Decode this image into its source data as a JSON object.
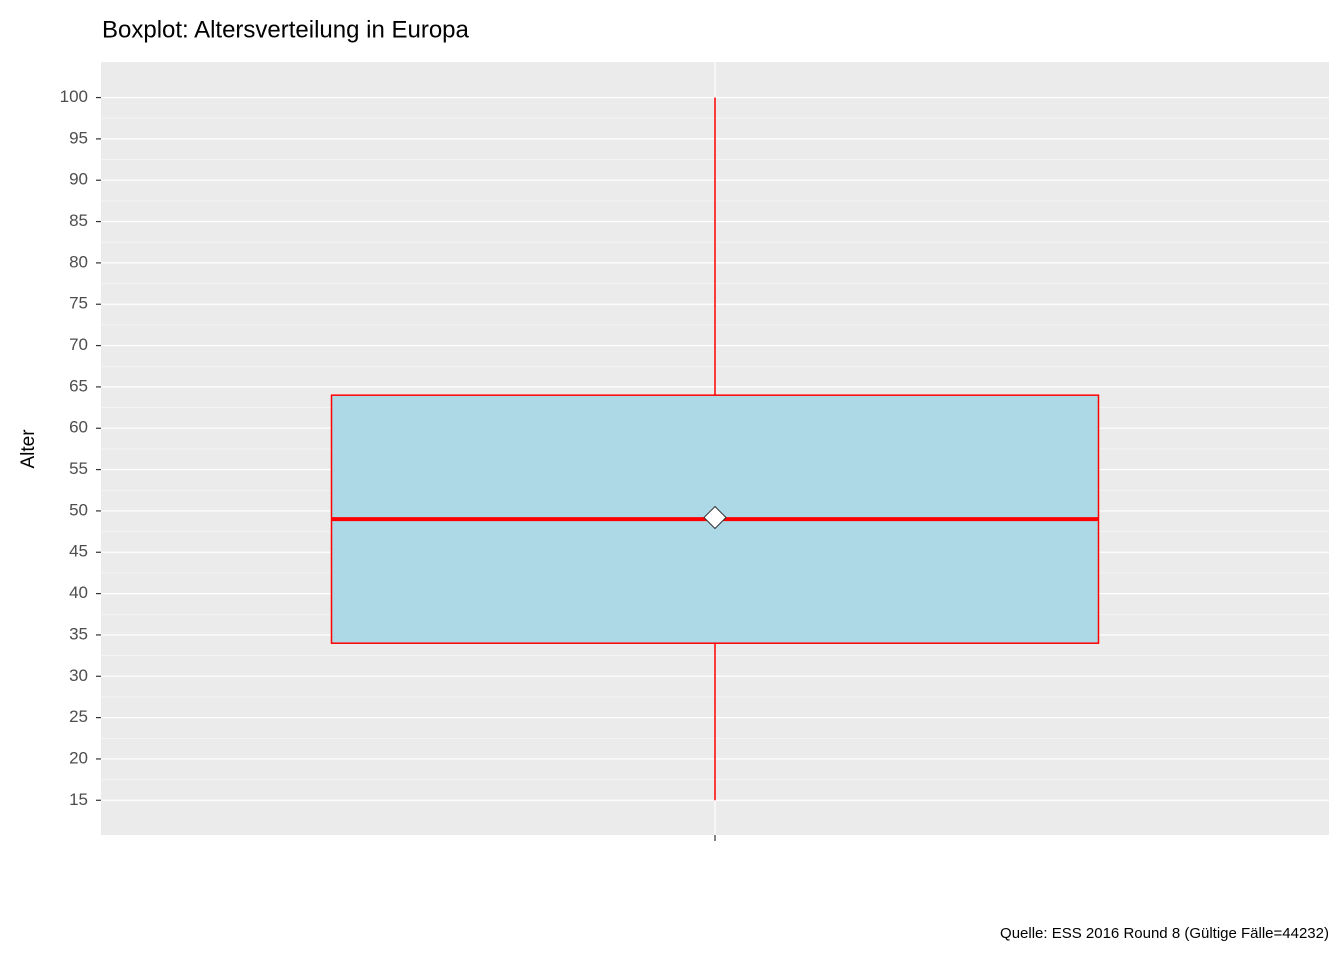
{
  "chart_data": {
    "type": "boxplot",
    "title": "Boxplot: Altersverteilung in Europa",
    "y_label": "Alter",
    "caption": "Quelle: ESS 2016 Round 8 (Gültige Fälle=44232)",
    "categories": [
      null
    ],
    "boxes": [
      {
        "whisker_low": 15,
        "q1": 34,
        "median": 49,
        "q3": 64,
        "whisker_high": 100,
        "mean": 49.2
      }
    ],
    "fill": "#add8e6",
    "color": "#ff0000",
    "mean_fill": "#ffffff",
    "ylim": [
      10.8,
      104.3
    ],
    "yticks": [
      15,
      20,
      25,
      30,
      35,
      40,
      45,
      50,
      55,
      60,
      65,
      70,
      75,
      80,
      85,
      90,
      95,
      100
    ],
    "grid": true,
    "minor_grid": true
  }
}
